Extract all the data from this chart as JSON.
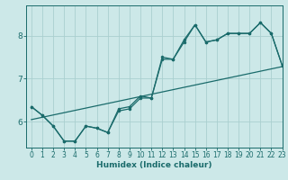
{
  "xlabel": "Humidex (Indice chaleur)",
  "bg_color": "#cce8e8",
  "line_color": "#1a6b6b",
  "grid_color": "#aacfcf",
  "x_min": -0.5,
  "x_max": 23,
  "y_min": 5.4,
  "y_max": 8.7,
  "y_ticks": [
    6,
    7,
    8
  ],
  "x_ticks": [
    0,
    1,
    2,
    3,
    4,
    5,
    6,
    7,
    8,
    9,
    10,
    11,
    12,
    13,
    14,
    15,
    16,
    17,
    18,
    19,
    20,
    21,
    22,
    23
  ],
  "line1_x": [
    0,
    1,
    2,
    3,
    4,
    5,
    6,
    7,
    8,
    9,
    10,
    11,
    12,
    13,
    14,
    15,
    16,
    17,
    18,
    19,
    20,
    21,
    22,
    23
  ],
  "line1_y": [
    6.35,
    6.15,
    5.9,
    5.55,
    5.55,
    5.9,
    5.85,
    5.75,
    6.25,
    6.3,
    6.55,
    6.55,
    7.5,
    7.45,
    7.9,
    8.25,
    7.85,
    7.9,
    8.05,
    8.05,
    8.05,
    8.3,
    8.05,
    7.3
  ],
  "line2_x": [
    0,
    1,
    2,
    3,
    4,
    5,
    6,
    7,
    8,
    9,
    10,
    11,
    12,
    13,
    14,
    15,
    16,
    17,
    18,
    19,
    20,
    21,
    22,
    23
  ],
  "line2_y": [
    6.35,
    6.15,
    5.9,
    5.55,
    5.55,
    5.9,
    5.85,
    5.75,
    6.3,
    6.35,
    6.6,
    6.55,
    7.45,
    7.45,
    7.85,
    8.25,
    7.85,
    7.9,
    8.05,
    8.05,
    8.05,
    8.3,
    8.05,
    7.3
  ],
  "trend_x": [
    0,
    23
  ],
  "trend_y": [
    6.05,
    7.28
  ],
  "xlabel_fontsize": 6.5,
  "tick_fontsize_x": 5.5,
  "tick_fontsize_y": 6.5,
  "linewidth": 0.9,
  "markersize": 2.2
}
